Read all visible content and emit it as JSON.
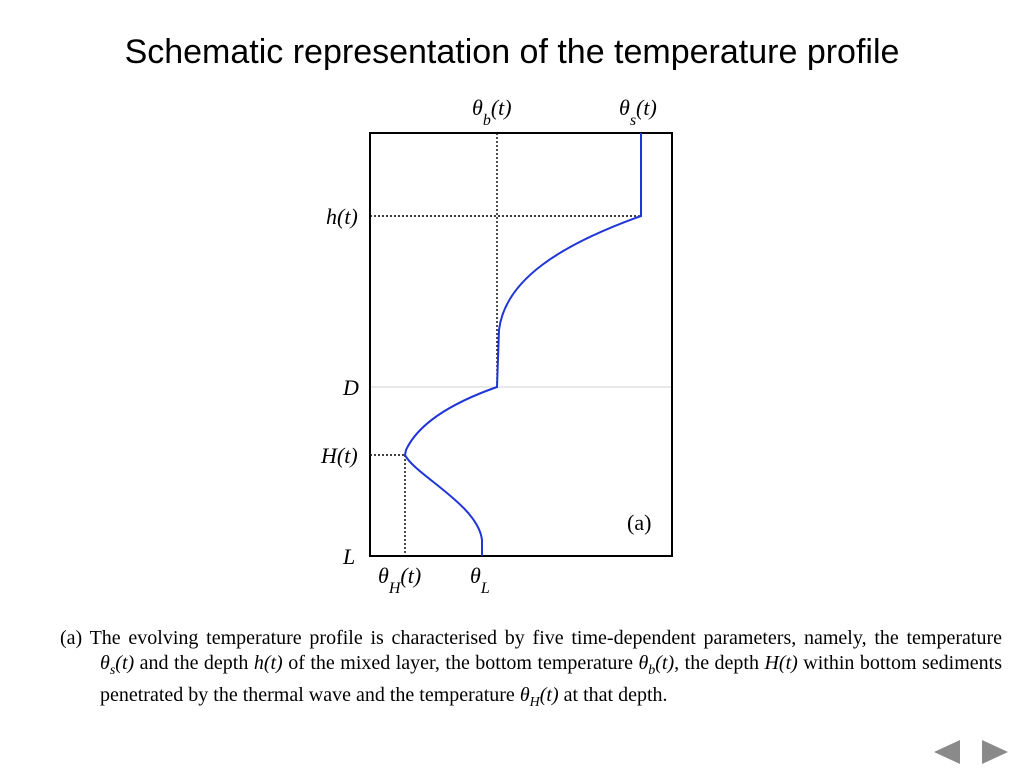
{
  "slide": {
    "title": "Schematic representation of the temperature profile"
  },
  "diagram": {
    "labels": {
      "theta_b_sym": "θ",
      "theta_b_sub": "b",
      "theta_b_arg": "(t)",
      "theta_s_sym": "θ",
      "theta_s_sub": "s",
      "theta_s_arg": "(t)",
      "h_t": "h(t)",
      "D": "D",
      "H_t": "H(t)",
      "L": "L",
      "theta_H_sym": "θ",
      "theta_H_sub": "H",
      "theta_H_arg": "(t)",
      "theta_L_sym": "θ",
      "theta_L_sub": "L",
      "panel": "(a)"
    },
    "colors": {
      "profile": "#1f35d8",
      "frame": "#000000",
      "guide": "#000000",
      "depth_line": "#d0d0d0"
    }
  },
  "caption": {
    "prefix": "(a) The evolving temperature profile is characterised by five time-dependent parameters, namely, the temperature ",
    "theta_s_sym": "θ",
    "theta_s_sub": "s",
    "theta_s_arg": "(t)",
    "part2": " and the depth ",
    "h_t": "h(t)",
    "part3": " of the mixed layer, the bottom temperature ",
    "theta_b_sym": "θ",
    "theta_b_sub": "b",
    "theta_b_arg": "(t)",
    "part4": ", the depth ",
    "H_t": "H(t)",
    "part5": " within bottom sediments penetrated by the thermal wave and the temperature ",
    "theta_H_sym": "θ",
    "theta_H_sub": "H",
    "theta_H_arg": "(t)",
    "part6": " at that depth."
  },
  "nav": {
    "prev_icon": "triangle-left",
    "next_icon": "triangle-right"
  }
}
